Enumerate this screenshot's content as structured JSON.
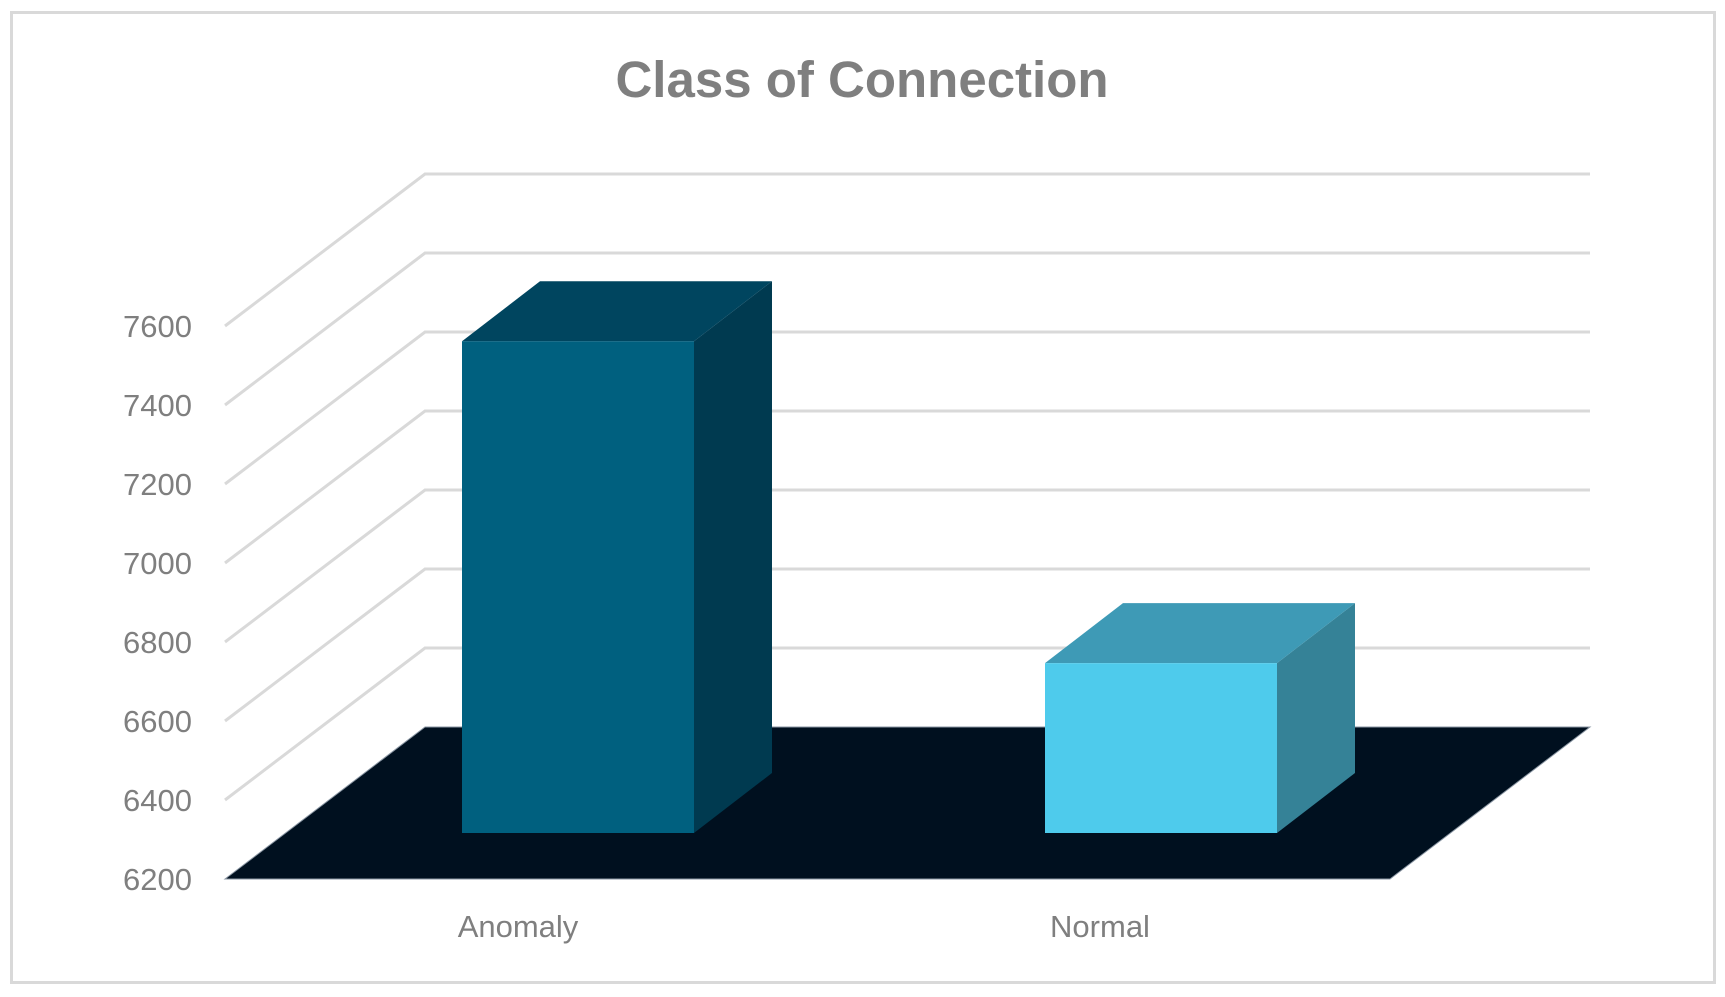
{
  "chart_data": {
    "type": "bar",
    "style": "3d-column",
    "title": "Class of Connection",
    "xlabel": "",
    "ylabel": "",
    "categories": [
      "Anomaly",
      "Normal"
    ],
    "values": [
      7445,
      6630
    ],
    "ylim": [
      6200,
      7600
    ],
    "yticks": [
      6200,
      6400,
      6600,
      6800,
      7000,
      7200,
      7400,
      7600
    ],
    "gridlines_extend_to": 7600,
    "grid": true,
    "legend": null,
    "colors": {
      "Anomaly": {
        "front": "#00607f",
        "top": "#00455f",
        "side": "#003a50"
      },
      "Normal": {
        "front": "#4ecbec",
        "top": "#3e9ab6",
        "side": "#358297"
      },
      "floor": "#00101f",
      "grid": "#d9d9d9",
      "text": "#7f7f7f",
      "border": "#d9d9d9"
    }
  }
}
